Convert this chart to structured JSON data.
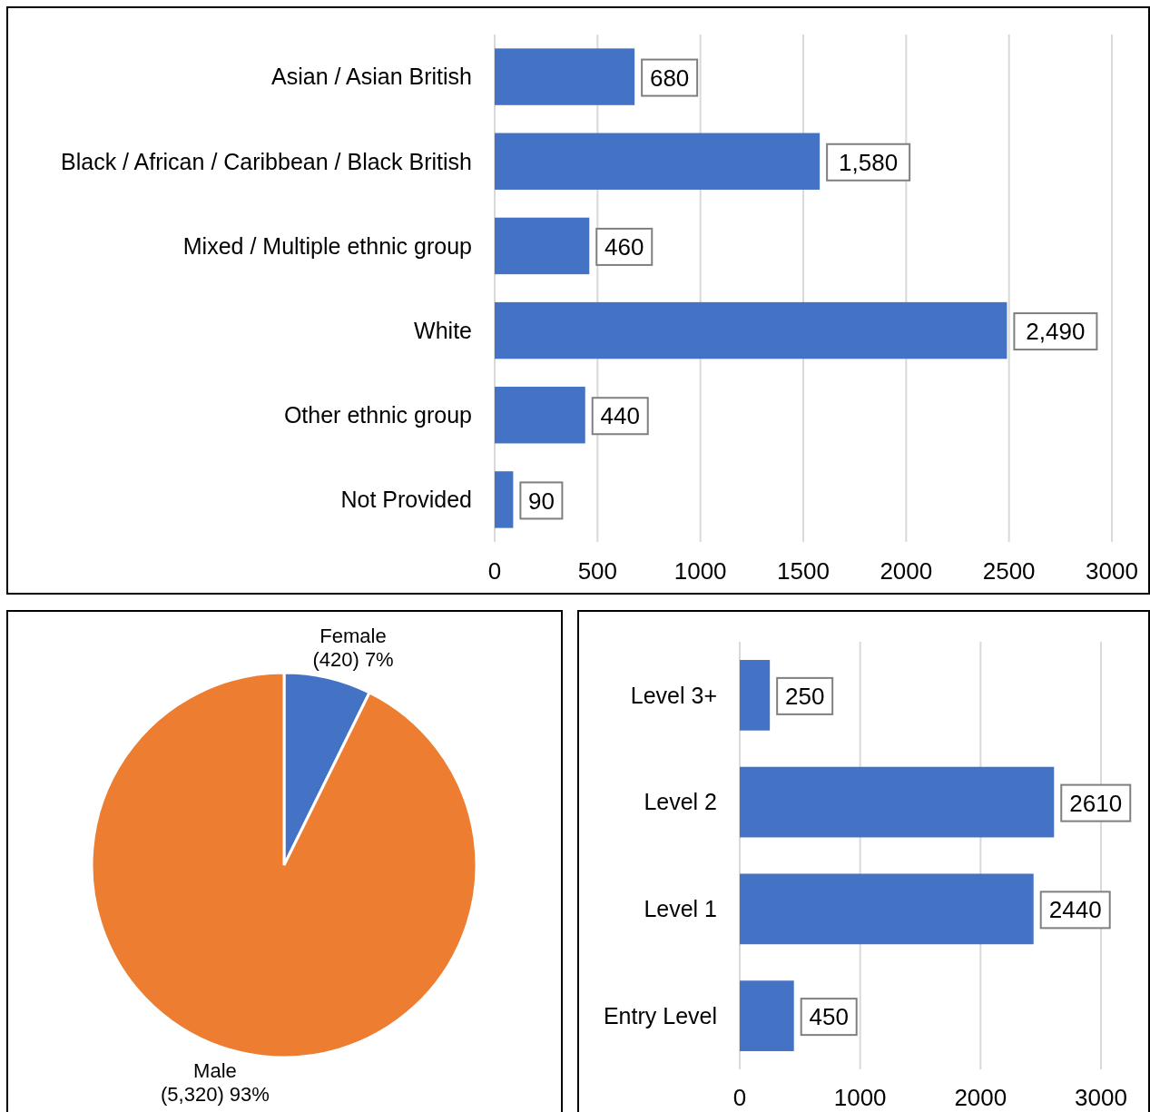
{
  "chart_data": [
    {
      "type": "bar",
      "orientation": "horizontal",
      "categories": [
        "Asian / Asian British",
        "Black / African / Caribbean / Black British",
        "Mixed / Multiple ethnic group",
        "White",
        "Other ethnic group",
        "Not Provided"
      ],
      "values": [
        680,
        1580,
        460,
        2490,
        440,
        90
      ],
      "value_labels": [
        "680",
        "1,580",
        "460",
        "2,490",
        "440",
        "90"
      ],
      "color": "#4472c4",
      "xlim": [
        0,
        3000
      ],
      "xticks": [
        0,
        500,
        1000,
        1500,
        2000,
        2500,
        3000
      ],
      "grid": "x"
    },
    {
      "type": "pie",
      "categories": [
        "Female",
        "Male"
      ],
      "values": [
        420,
        5320
      ],
      "value_labels": [
        "(420) 7%",
        "(5,320) 93%"
      ],
      "colors": [
        "#4472c4",
        "#ed7d31"
      ]
    },
    {
      "type": "bar",
      "orientation": "horizontal",
      "categories": [
        "Level 3+",
        "Level 2",
        "Level 1",
        "Entry Level"
      ],
      "values": [
        250,
        2610,
        2440,
        450
      ],
      "data_labels": true,
      "color": "#4472c4",
      "xlim": [
        0,
        3000
      ],
      "xticks": [
        0,
        1000,
        2000,
        3000
      ],
      "grid": "x"
    }
  ]
}
